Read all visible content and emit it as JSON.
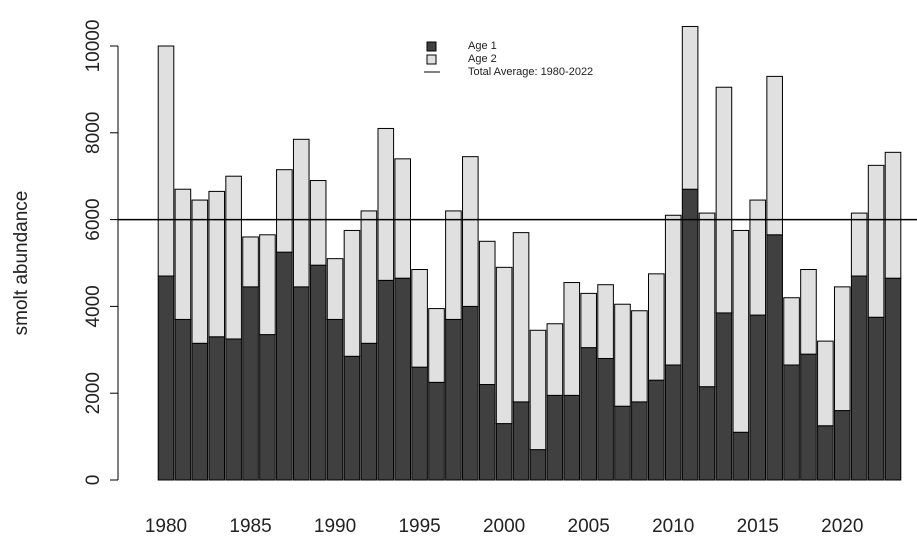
{
  "chart_data": {
    "type": "stacked_bar",
    "y_label": "smolt abundance",
    "x": [
      1980,
      1981,
      1982,
      1983,
      1984,
      1985,
      1986,
      1987,
      1988,
      1989,
      1990,
      1991,
      1992,
      1993,
      1994,
      1995,
      1996,
      1997,
      1998,
      1999,
      2000,
      2001,
      2002,
      2003,
      2004,
      2005,
      2006,
      2007,
      2008,
      2009,
      2010,
      2011,
      2012,
      2013,
      2014,
      2015,
      2016,
      2017,
      2018,
      2019,
      2020,
      2021,
      2022,
      2023
    ],
    "series": [
      {
        "name": "Age 1",
        "color": "#404040",
        "values": [
          4700,
          3700,
          3150,
          3300,
          3250,
          4450,
          3350,
          5250,
          4450,
          4950,
          3700,
          2850,
          3150,
          4600,
          4650,
          2600,
          2250,
          3700,
          4000,
          2200,
          1300,
          1800,
          700,
          1950,
          1950,
          3050,
          2800,
          1700,
          1800,
          2300,
          2650,
          6700,
          2150,
          3850,
          1100,
          3800,
          5650,
          2650,
          2900,
          1250,
          1600,
          4700,
          3750,
          4650
        ]
      },
      {
        "name": "Age 2",
        "color": "#e0e0e0",
        "values": [
          5300,
          3000,
          3300,
          3350,
          3750,
          1150,
          2300,
          1900,
          3400,
          1950,
          1400,
          2900,
          3050,
          3500,
          2750,
          2250,
          1700,
          2500,
          3450,
          3300,
          3600,
          3900,
          2750,
          1650,
          2600,
          1250,
          1700,
          2350,
          2100,
          2450,
          3450,
          3750,
          4000,
          5200,
          4650,
          2650,
          3650,
          1550,
          1950,
          1950,
          2850,
          1450,
          3500,
          2900
        ]
      }
    ],
    "average_line": {
      "name": "Total Average: 1980-2022",
      "value": 6000,
      "color": "#000000"
    },
    "ylim": [
      0,
      10000
    ],
    "yticks": [
      0,
      2000,
      4000,
      6000,
      8000,
      10000
    ],
    "xticks": [
      1980,
      1985,
      1990,
      1995,
      2000,
      2005,
      2010,
      2015,
      2020
    ],
    "grid": false
  }
}
